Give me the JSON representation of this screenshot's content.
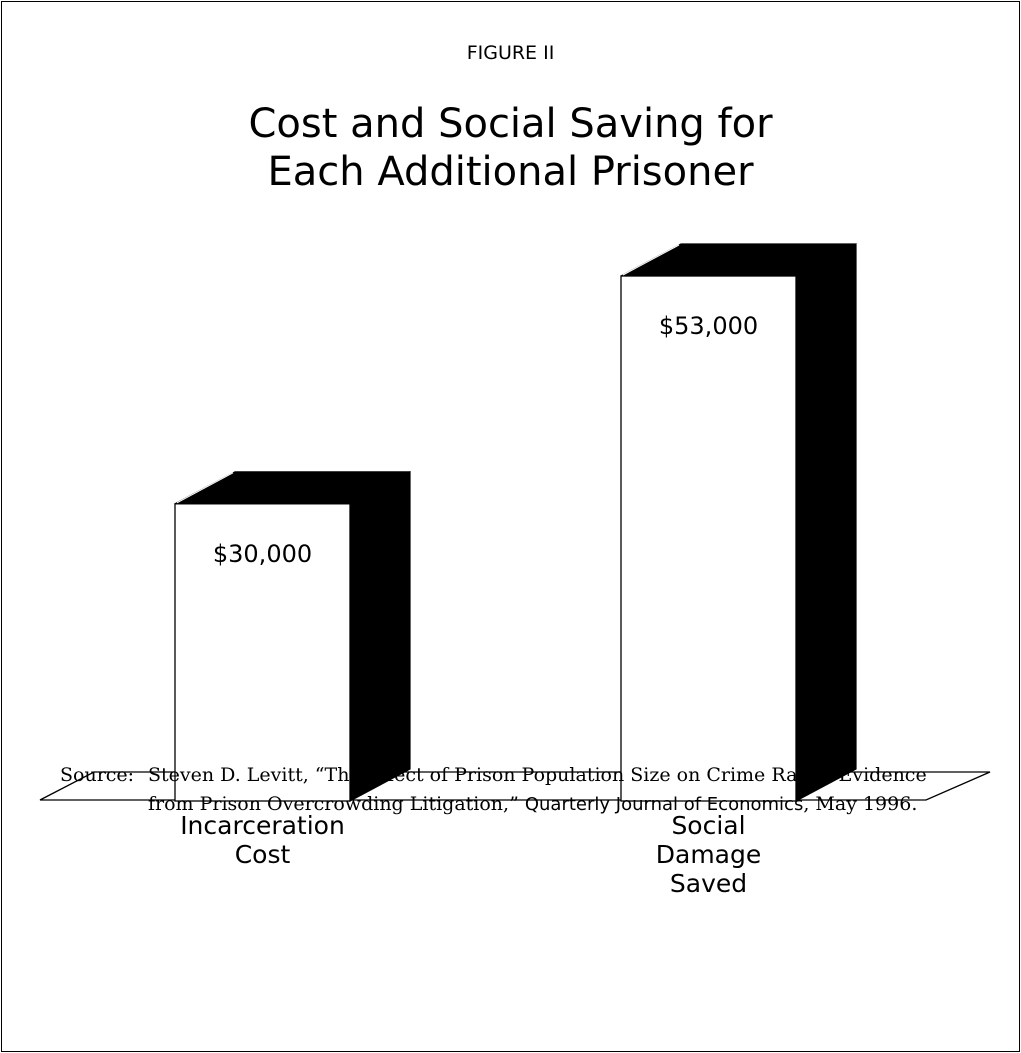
{
  "figure": {
    "label": "FIGURE II",
    "title_line1": "Cost and Social Saving for",
    "title_line2": "Each Additional Prisoner"
  },
  "chart_data": {
    "type": "bar",
    "title": "Cost and Social Saving for Each Additional Prisoner",
    "categories": [
      "Incarceration Cost",
      "Social Damage Saved"
    ],
    "values": [
      30000,
      53000
    ],
    "data_labels": [
      "$30,000",
      "$53,000"
    ],
    "category_lines": [
      [
        "Incarceration",
        "Cost"
      ],
      [
        "Social",
        "Damage",
        "Saved"
      ]
    ],
    "style": "3d-box",
    "grid": false,
    "legend": "none",
    "colors": {
      "bar_face": "#ffffff",
      "bar_side": "#000000",
      "outline": "#000000"
    }
  },
  "source": {
    "prefix": "Source:",
    "text": "Steven D. Levitt, “The Effect of Prison Population Size on Crime Rates: Evidence from Prison Overcrowding Litigation,”",
    "journal": "Quarterly Journal of Economics",
    "date": ", May 1996."
  }
}
